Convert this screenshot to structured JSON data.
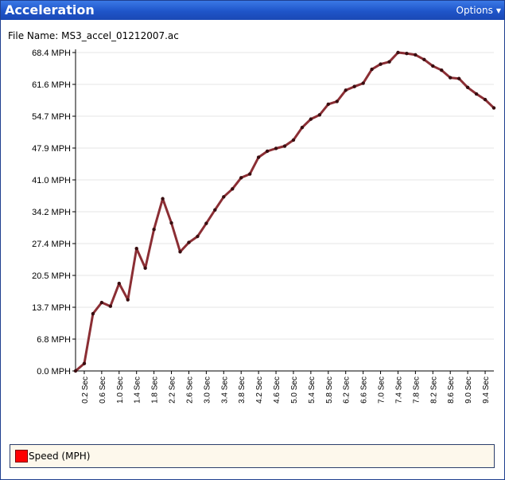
{
  "window": {
    "title": "Acceleration",
    "options_label": "Options"
  },
  "file": {
    "label": "File Name: MS3_accel_01212007.ac"
  },
  "legend": {
    "label": "Speed (MPH)",
    "swatch_color": "#ff0000"
  },
  "chart_data": {
    "type": "line",
    "title": "",
    "xlabel": "",
    "ylabel": "",
    "y_ticks": [
      "0.0 MPH",
      "6.8 MPH",
      "13.7 MPH",
      "20.5 MPH",
      "27.4 MPH",
      "34.2 MPH",
      "41.0 MPH",
      "47.9 MPH",
      "54.7 MPH",
      "61.6 MPH",
      "68.4 MPH"
    ],
    "x_ticks": [
      "0.2 Sec",
      "0.6 Sec",
      "1.0 Sec",
      "1.4 Sec",
      "1.8 Sec",
      "2.2 Sec",
      "2.6 Sec",
      "3.0 Sec",
      "3.4 Sec",
      "3.8 Sec",
      "4.2 Sec",
      "4.6 Sec",
      "5.0 Sec",
      "5.4 Sec",
      "5.8 Sec",
      "6.2 Sec",
      "6.6 Sec",
      "7.0 Sec",
      "7.4 Sec",
      "7.8 Sec",
      "8.2 Sec",
      "8.6 Sec",
      "9.0 Sec",
      "9.4 Sec"
    ],
    "ylim": [
      0,
      68.4
    ],
    "grid": true,
    "legend_position": "bottom",
    "series": [
      {
        "name": "Speed (MPH)",
        "color": "#8b2e34",
        "x": [
          0.0,
          0.2,
          0.4,
          0.6,
          0.8,
          1.0,
          1.2,
          1.4,
          1.6,
          1.8,
          2.0,
          2.2,
          2.4,
          2.6,
          2.8,
          3.0,
          3.2,
          3.4,
          3.6,
          3.8,
          4.0,
          4.2,
          4.4,
          4.6,
          4.8,
          5.0,
          5.2,
          5.4,
          5.6,
          5.8,
          6.0,
          6.2,
          6.4,
          6.6,
          6.8,
          7.0,
          7.2,
          7.4,
          7.6,
          7.8,
          8.0,
          8.2,
          8.4,
          8.6,
          8.8,
          9.0,
          9.2,
          9.4,
          9.6
        ],
        "y": [
          0.0,
          1.6,
          12.3,
          14.7,
          13.9,
          18.8,
          15.3,
          26.3,
          22.1,
          30.4,
          37.0,
          31.8,
          25.6,
          27.6,
          28.9,
          31.7,
          34.6,
          37.4,
          39.1,
          41.5,
          42.3,
          45.9,
          47.2,
          47.8,
          48.3,
          49.6,
          52.3,
          54.1,
          55.0,
          57.3,
          57.9,
          60.3,
          61.1,
          61.8,
          64.8,
          65.9,
          66.4,
          68.4,
          68.2,
          67.9,
          66.9,
          65.5,
          64.6,
          63.0,
          62.8,
          60.9,
          59.5,
          58.3,
          56.5
        ]
      }
    ]
  }
}
